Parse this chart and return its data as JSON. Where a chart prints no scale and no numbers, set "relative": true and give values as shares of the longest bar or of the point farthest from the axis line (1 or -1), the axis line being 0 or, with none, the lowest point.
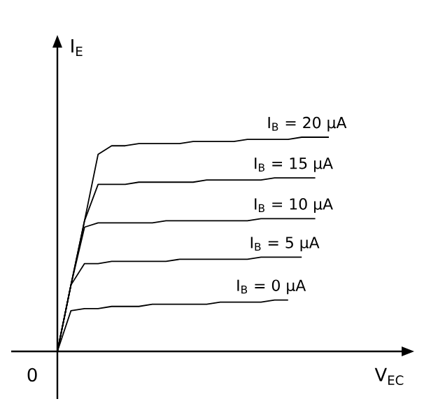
{
  "chart_data": {
    "type": "line",
    "relative": true,
    "xlabel": "V$_{EC}$",
    "ylabel": "I$_{E}$",
    "annotations": [
      "0"
    ],
    "categories": [
      null,
      null,
      null,
      null,
      null,
      null,
      null,
      null,
      null,
      null,
      null,
      null,
      null,
      null,
      null,
      null,
      null,
      null,
      null,
      null,
      null
    ],
    "series": [
      {
        "name": "I$_{B}$ = 20 μA",
        "color": "#000000",
        "values": [
          0,
          0.31,
          0.61,
          0.92,
          0.96,
          0.96,
          0.97,
          0.97,
          0.97,
          0.97,
          0.98,
          0.98,
          0.98,
          0.98,
          0.99,
          0.99,
          0.99,
          0.99,
          1.0,
          1.0,
          1.0
        ]
      },
      {
        "name": "I$_{B}$ = 15 μA",
        "color": "#000000",
        "values": [
          0,
          0.31,
          0.61,
          0.78,
          0.78,
          0.78,
          0.79,
          0.79,
          0.79,
          0.79,
          0.79,
          0.8,
          0.8,
          0.8,
          0.8,
          0.8,
          0.81,
          0.81,
          0.81,
          0.81,
          null
        ]
      },
      {
        "name": "I$_{B}$ = 10 μA",
        "color": "#000000",
        "values": [
          0,
          0.31,
          0.58,
          0.6,
          0.6,
          0.6,
          0.6,
          0.6,
          0.61,
          0.61,
          0.61,
          0.61,
          0.61,
          0.61,
          0.61,
          0.62,
          0.62,
          0.62,
          0.62,
          0.62,
          null
        ]
      },
      {
        "name": "I$_{B}$ = 5 μA",
        "color": "#000000",
        "values": [
          0,
          0.31,
          0.41,
          0.41,
          0.42,
          0.42,
          0.42,
          0.42,
          0.42,
          0.43,
          0.43,
          0.43,
          0.43,
          0.43,
          0.43,
          0.44,
          0.44,
          0.44,
          0.44,
          null,
          null
        ]
      },
      {
        "name": "I$_{B}$ = 0 μA",
        "color": "#000000",
        "values": [
          0,
          0.19,
          0.2,
          0.2,
          0.21,
          0.21,
          0.21,
          0.22,
          0.22,
          0.22,
          0.22,
          0.22,
          0.23,
          0.23,
          0.23,
          0.23,
          0.24,
          0.24,
          null,
          null,
          null
        ]
      }
    ]
  }
}
